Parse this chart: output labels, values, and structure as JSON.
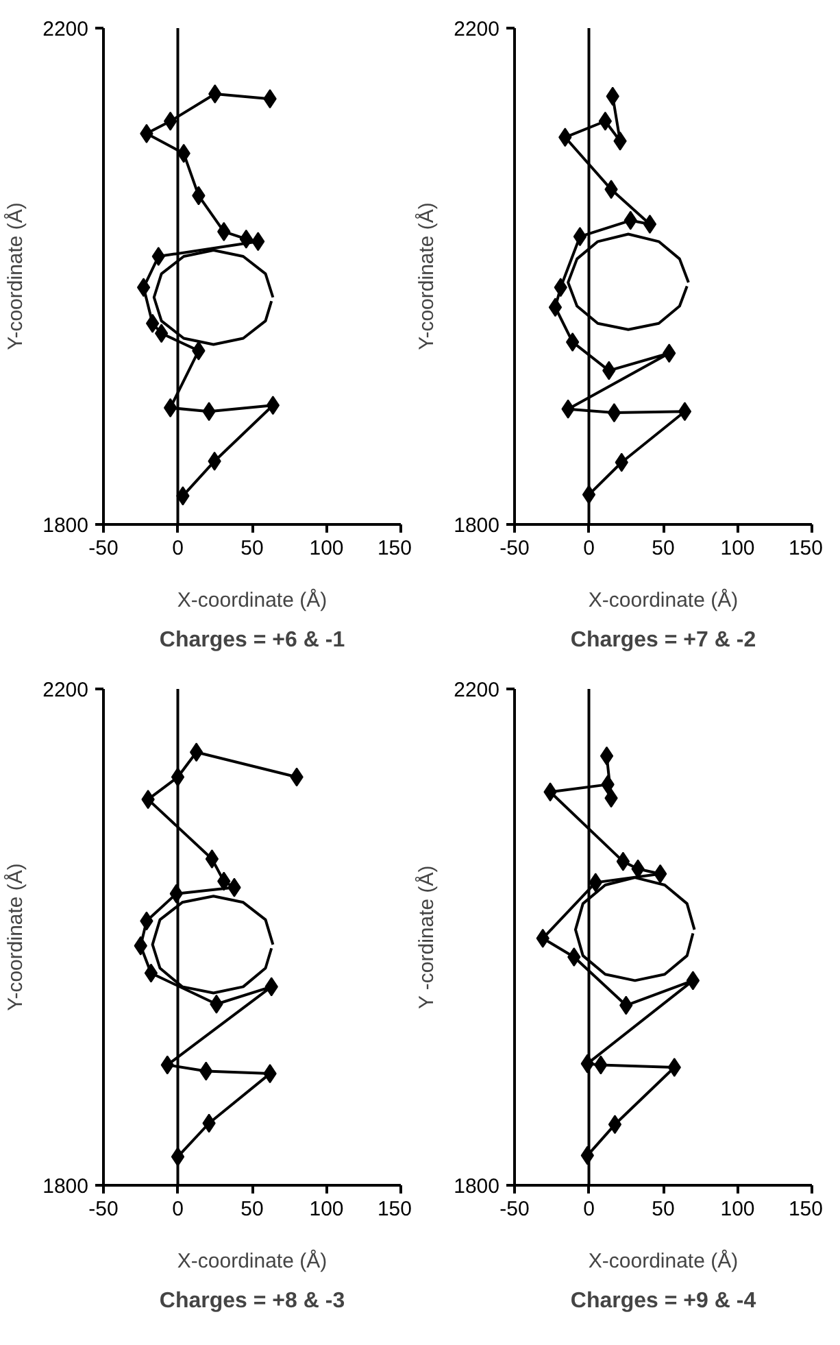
{
  "chart_data": [
    {
      "type": "line",
      "title": "Charges = +6 & -1",
      "ref_lines": [
        {
          "axis": "x",
          "value": 0
        }
      ],
      "xlabel": "X-coordinate (Å)",
      "ylabel": "Y-coordinate (Å)",
      "xlim": [
        -50,
        150
      ],
      "ylim": [
        1800,
        2200
      ],
      "xticks": [
        -50,
        0,
        50,
        100,
        150
      ],
      "yticks": [
        1800,
        2200
      ],
      "grid": false,
      "marker": "diamond",
      "series": [
        {
          "color": "#000000",
          "x": [
            3.4,
            24.7,
            64,
            21,
            -5,
            14,
            -11,
            -17,
            -23,
            -13,
            54,
            46,
            31,
            14,
            4,
            -21,
            -5,
            25,
            62
          ],
          "values": [
            1823,
            1851,
            1896,
            1891,
            1894,
            1940,
            1954,
            1962,
            1991,
            2016,
            2028,
            2030,
            2036,
            2065,
            2099,
            2115,
            2125,
            2147,
            2143
          ]
        },
        {
          "color": "#000000",
          "marker": "none",
          "x": [
            64,
            59,
            44,
            24,
            4,
            -11,
            -16,
            -11,
            4,
            24,
            44,
            59,
            63
          ],
          "values": [
            1983,
            2002,
            2016,
            2021,
            2016,
            2002,
            1983,
            1964,
            1950,
            1945,
            1950,
            1964,
            1980
          ]
        }
      ]
    },
    {
      "type": "line",
      "title": "Charges = +7 & -2",
      "ref_lines": [
        {
          "axis": "x",
          "value": 0
        }
      ],
      "xlabel": "X-coordinate (Å)",
      "ylabel": "Y-coordinate (Å)",
      "xlim": [
        -50,
        150
      ],
      "ylim": [
        1800,
        2200
      ],
      "xticks": [
        -50,
        0,
        50,
        100,
        150
      ],
      "yticks": [
        1800,
        2200
      ],
      "grid": false,
      "marker": "diamond",
      "series": [
        {
          "color": "#000000",
          "x": [
            0,
            22,
            64.5,
            17,
            -14,
            54,
            13.5,
            -11,
            -22.6,
            -19,
            -6,
            28,
            41,
            15,
            -16,
            11,
            21,
            16
          ],
          "values": [
            1824,
            1850,
            1891,
            1890,
            1893,
            1938,
            1924,
            1947,
            1975,
            1991,
            2032,
            2045,
            2042,
            2070,
            2112,
            2125,
            2109,
            2145
          ]
        },
        {
          "color": "#000000",
          "marker": "none",
          "x": [
            67,
            61,
            47,
            26.5,
            6,
            -8,
            -14,
            -8,
            6,
            26.5,
            47,
            61,
            66
          ],
          "values": [
            1995,
            2014,
            2028,
            2034,
            2028,
            2014,
            1995,
            1976,
            1962,
            1957,
            1962,
            1976,
            1992
          ]
        }
      ]
    },
    {
      "type": "line",
      "title": "Charges = +8 & -3",
      "ref_lines": [
        {
          "axis": "x",
          "value": 0
        }
      ],
      "xlabel": "X-coordinate (Å)",
      "ylabel": "Y-coordinate (Å)",
      "xlim": [
        -50,
        150
      ],
      "ylim": [
        1800,
        2200
      ],
      "xticks": [
        -50,
        0,
        50,
        100,
        150
      ],
      "yticks": [
        1800,
        2200
      ],
      "grid": false,
      "marker": "diamond",
      "series": [
        {
          "color": "#000000",
          "x": [
            0,
            21,
            62,
            19,
            -7,
            63,
            26,
            -18,
            -25,
            -21,
            -1,
            38,
            31,
            23,
            -20,
            0,
            12.5,
            80
          ],
          "values": [
            1823,
            1850,
            1890,
            1892,
            1897,
            1960,
            1946,
            1971,
            1993,
            2013,
            2035,
            2040,
            2045,
            2063,
            2111,
            2129,
            2149,
            2129
          ]
        },
        {
          "color": "#000000",
          "marker": "none",
          "x": [
            64,
            59,
            44,
            24,
            3,
            -12,
            -17,
            -12,
            3,
            24,
            44,
            59,
            63
          ],
          "values": [
            1994,
            2014,
            2028,
            2033,
            2028,
            2014,
            1994,
            1975,
            1960,
            1955,
            1960,
            1975,
            1991
          ]
        }
      ]
    },
    {
      "type": "line",
      "title": "Charges = +9 & -4",
      "ref_lines": [
        {
          "axis": "x",
          "value": 0
        }
      ],
      "xlabel": "X-coordinate (Å)",
      "ylabel": "Y -cordinate (Å)",
      "xlim": [
        -50,
        150
      ],
      "ylim": [
        1800,
        2200
      ],
      "xticks": [
        -50,
        0,
        50,
        100,
        150
      ],
      "yticks": [
        1800,
        2200
      ],
      "grid": false,
      "marker": "diamond",
      "series": [
        {
          "color": "#000000",
          "x": [
            -1,
            17.5,
            57.5,
            8,
            -1,
            70,
            25,
            -10,
            -31,
            4.5,
            48,
            33,
            23,
            -26,
            12.7,
            15,
            12
          ],
          "values": [
            1824,
            1849,
            1895,
            1897,
            1898,
            1965,
            1945,
            1984,
            1999,
            2044,
            2051,
            2055,
            2061,
            2117,
            2123,
            2112,
            2146
          ]
        },
        {
          "color": "#000000",
          "marker": "none",
          "x": [
            71,
            66,
            51,
            31,
            11,
            -4,
            -9,
            -4,
            11,
            31,
            51,
            66,
            70
          ],
          "values": [
            2006,
            2027,
            2042,
            2048,
            2042,
            2027,
            2006,
            1985,
            1970,
            1965,
            1970,
            1985,
            2003
          ]
        }
      ]
    }
  ]
}
